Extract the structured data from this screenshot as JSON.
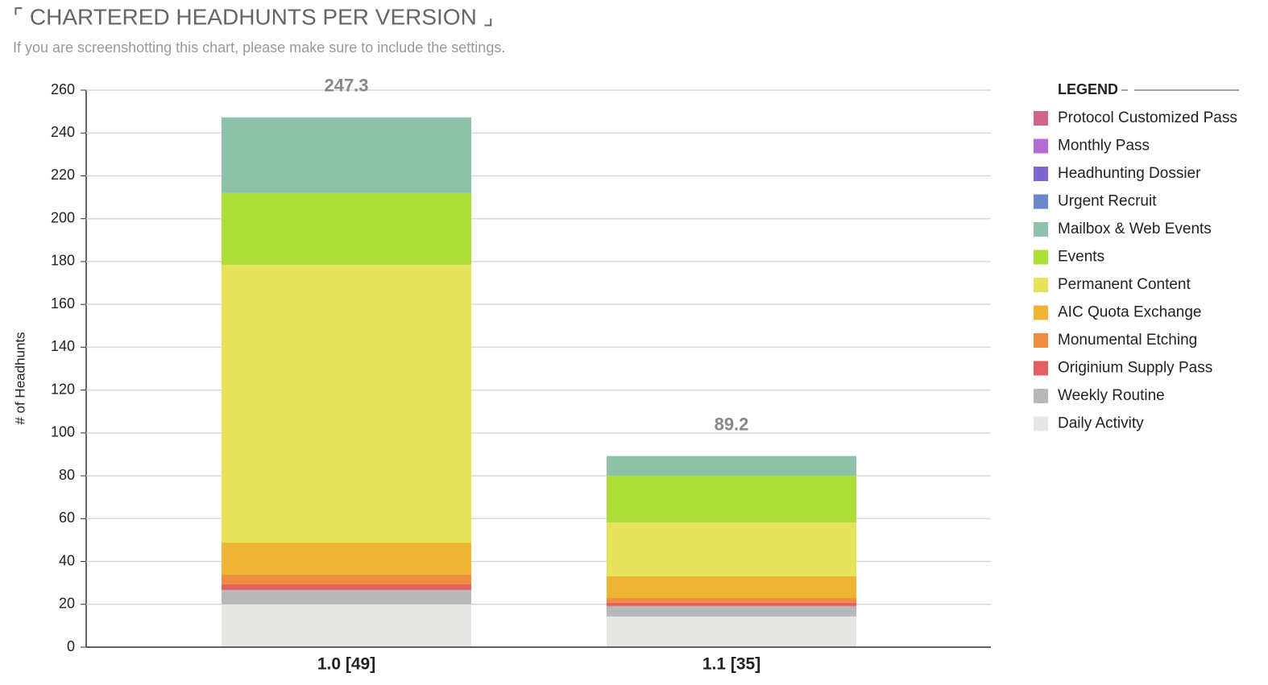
{
  "chart_data": {
    "type": "stacked_bar",
    "title": "⌜ CHARTERED HEADHUNTS PER VERSION ⌟",
    "subtitle": "If you are screenshotting this chart, please make sure to include the settings.",
    "y_label": "# of Headhunts",
    "legend_title": "LEGEND",
    "categories": [
      "1.0 [49]",
      "1.1 [35]"
    ],
    "totals": [
      247.3,
      89.2
    ],
    "ylim": [
      0,
      260
    ],
    "yticks": [
      0,
      20,
      40,
      60,
      80,
      100,
      120,
      140,
      160,
      180,
      200,
      220,
      240,
      260
    ],
    "grid": true,
    "legend": "right",
    "series": [
      {
        "name": "Protocol Customized Pass",
        "color": "#d0678a",
        "values": [
          0,
          0
        ]
      },
      {
        "name": "Monthly Pass",
        "color": "#b56bd6",
        "values": [
          0,
          0
        ]
      },
      {
        "name": "Headhunting Dossier",
        "color": "#8064d0",
        "values": [
          0,
          0
        ]
      },
      {
        "name": "Urgent Recruit",
        "color": "#6a86cf",
        "values": [
          0,
          0
        ]
      },
      {
        "name": "Mailbox & Web Events",
        "color": "#8cc2a8",
        "values": [
          35.3,
          9.2
        ]
      },
      {
        "name": "Events",
        "color": "#aedd35",
        "values": [
          33.5,
          21.8
        ]
      },
      {
        "name": "Permanent Content",
        "color": "#e5e25b",
        "values": [
          129.7,
          25.1
        ]
      },
      {
        "name": "AIC Quota Exchange",
        "color": "#efb532",
        "values": [
          15,
          10.2
        ]
      },
      {
        "name": "Monumental Etching",
        "color": "#f08c42",
        "values": [
          4.5,
          2.2
        ]
      },
      {
        "name": "Originium Supply Pass",
        "color": "#e46060",
        "values": [
          2.6,
          1.5
        ]
      },
      {
        "name": "Weekly Routine",
        "color": "#b8b8b8",
        "values": [
          6.7,
          4.9
        ]
      },
      {
        "name": "Daily Activity",
        "color": "#e6e7e3",
        "values": [
          20,
          14.3
        ]
      }
    ]
  }
}
